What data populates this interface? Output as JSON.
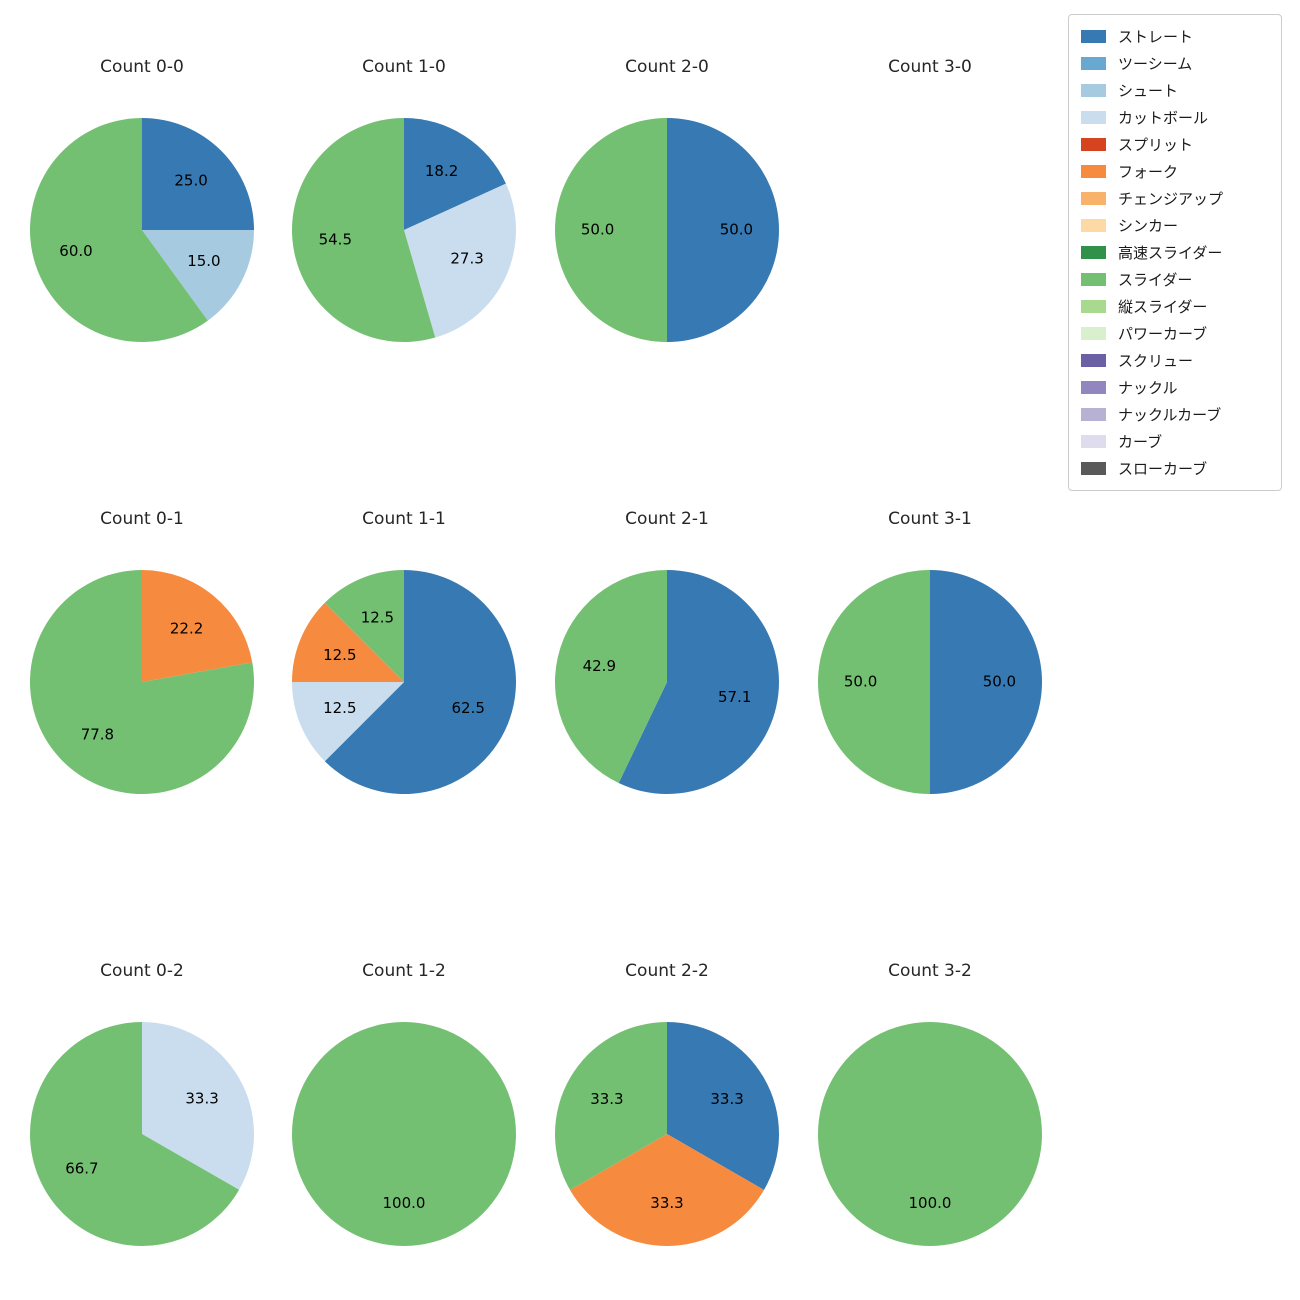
{
  "figure": {
    "background_color": "#ffffff",
    "text_color": "#262626",
    "label_color": "#000000"
  },
  "legend": {
    "position": "top-right",
    "items": [
      {
        "label": "ストレート",
        "color": "#3779b2"
      },
      {
        "label": "ツーシーム",
        "color": "#69a8d1"
      },
      {
        "label": "シュート",
        "color": "#a6cadf"
      },
      {
        "label": "カットボール",
        "color": "#c9ddef"
      },
      {
        "label": "スプリット",
        "color": "#d6441f"
      },
      {
        "label": "フォーク",
        "color": "#f68b3f"
      },
      {
        "label": "チェンジアップ",
        "color": "#f9b269"
      },
      {
        "label": "シンカー",
        "color": "#fcd9a5"
      },
      {
        "label": "高速スライダー",
        "color": "#31914a"
      },
      {
        "label": "スライダー",
        "color": "#74c072"
      },
      {
        "label": "縦スライダー",
        "color": "#a8d98f"
      },
      {
        "label": "パワーカーブ",
        "color": "#d8f0cc"
      },
      {
        "label": "スクリュー",
        "color": "#6b5fa5"
      },
      {
        "label": "ナックル",
        "color": "#9186bd"
      },
      {
        "label": "ナックルカーブ",
        "color": "#b7b1d3"
      },
      {
        "label": "カーブ",
        "color": "#dfdded"
      },
      {
        "label": "スローカーブ",
        "color": "#595959"
      }
    ]
  },
  "chart_data": [
    {
      "type": "pie",
      "title": "Count 0-0",
      "start_angle": 90,
      "clockwise": true,
      "slices": [
        {
          "label": "ストレート",
          "value": 25.0
        },
        {
          "label": "シュート",
          "value": 15.0
        },
        {
          "label": "スライダー",
          "value": 60.0
        }
      ]
    },
    {
      "type": "pie",
      "title": "Count 1-0",
      "start_angle": 90,
      "clockwise": true,
      "slices": [
        {
          "label": "ストレート",
          "value": 18.2
        },
        {
          "label": "カットボール",
          "value": 27.3
        },
        {
          "label": "スライダー",
          "value": 54.5
        }
      ]
    },
    {
      "type": "pie",
      "title": "Count 2-0",
      "start_angle": 90,
      "clockwise": true,
      "slices": [
        {
          "label": "ストレート",
          "value": 50.0
        },
        {
          "label": "スライダー",
          "value": 50.0
        }
      ]
    },
    {
      "type": "pie",
      "title": "Count 3-0",
      "start_angle": 90,
      "clockwise": true,
      "slices": []
    },
    {
      "type": "pie",
      "title": "Count 0-1",
      "start_angle": 90,
      "clockwise": true,
      "slices": [
        {
          "label": "フォーク",
          "value": 22.2
        },
        {
          "label": "スライダー",
          "value": 77.8
        }
      ]
    },
    {
      "type": "pie",
      "title": "Count 1-1",
      "start_angle": 90,
      "clockwise": true,
      "slices": [
        {
          "label": "ストレート",
          "value": 62.5
        },
        {
          "label": "カットボール",
          "value": 12.5
        },
        {
          "label": "フォーク",
          "value": 12.5
        },
        {
          "label": "スライダー",
          "value": 12.5
        }
      ]
    },
    {
      "type": "pie",
      "title": "Count 2-1",
      "start_angle": 90,
      "clockwise": true,
      "slices": [
        {
          "label": "ストレート",
          "value": 57.1
        },
        {
          "label": "スライダー",
          "value": 42.9
        }
      ]
    },
    {
      "type": "pie",
      "title": "Count 3-1",
      "start_angle": 90,
      "clockwise": true,
      "slices": [
        {
          "label": "ストレート",
          "value": 50.0
        },
        {
          "label": "スライダー",
          "value": 50.0
        }
      ]
    },
    {
      "type": "pie",
      "title": "Count 0-2",
      "start_angle": 90,
      "clockwise": true,
      "slices": [
        {
          "label": "カットボール",
          "value": 33.3
        },
        {
          "label": "スライダー",
          "value": 66.7
        }
      ]
    },
    {
      "type": "pie",
      "title": "Count 1-2",
      "start_angle": 90,
      "clockwise": true,
      "slices": [
        {
          "label": "スライダー",
          "value": 100.0
        }
      ]
    },
    {
      "type": "pie",
      "title": "Count 2-2",
      "start_angle": 90,
      "clockwise": true,
      "slices": [
        {
          "label": "ストレート",
          "value": 33.3
        },
        {
          "label": "フォーク",
          "value": 33.3
        },
        {
          "label": "スライダー",
          "value": 33.3
        }
      ]
    },
    {
      "type": "pie",
      "title": "Count 3-2",
      "start_angle": 90,
      "clockwise": true,
      "slices": [
        {
          "label": "スライダー",
          "value": 100.0
        }
      ]
    }
  ]
}
